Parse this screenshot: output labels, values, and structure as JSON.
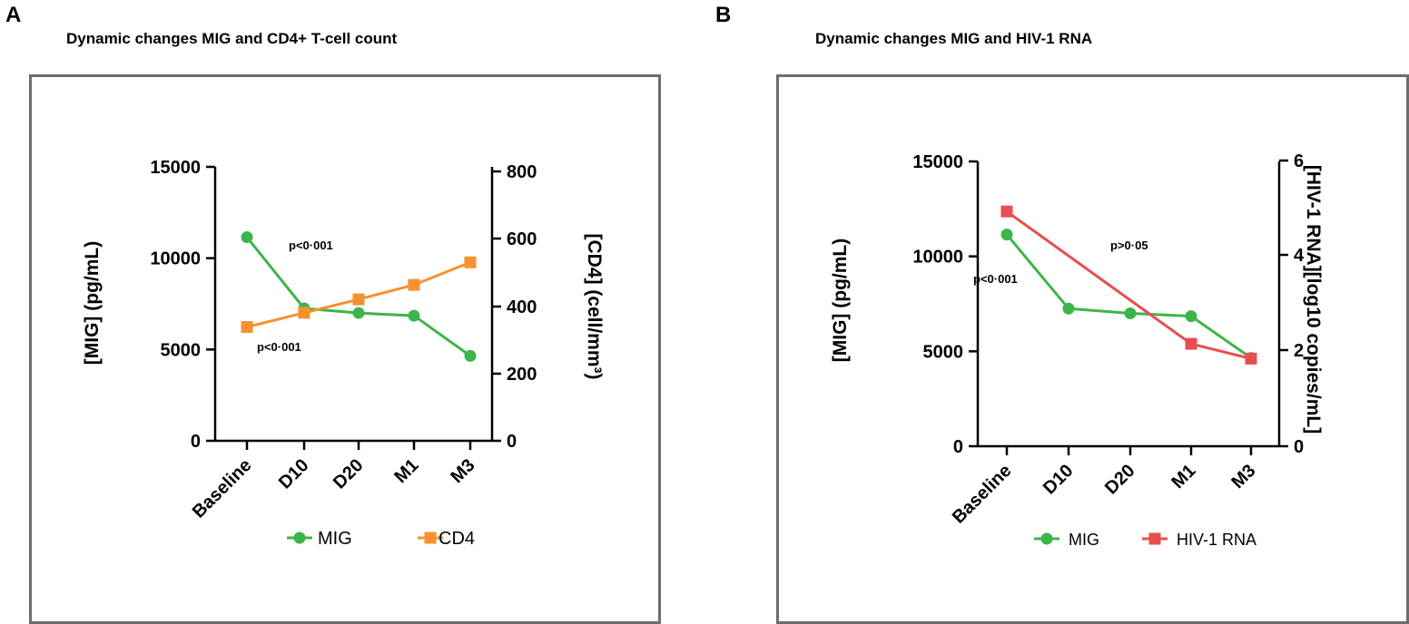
{
  "panels": [
    {
      "letter": "A",
      "title": "Dynamic changes MIG and CD4+ T-cell count"
    },
    {
      "letter": "B",
      "title": "Dynamic changes MIG and HIV-1 RNA"
    }
  ],
  "chart_data": [
    {
      "type": "line",
      "categories": [
        "Baseline",
        "D10",
        "D20",
        "M1",
        "M3"
      ],
      "ylabel": "[MIG] (pg/mL)",
      "y2label": "[CD4] (cell/mm³)",
      "ylim": [
        0,
        15000
      ],
      "yticks": [
        "0",
        "5000",
        "10000",
        "15000"
      ],
      "y2lim": [
        0,
        800
      ],
      "y2ticks": [
        "0",
        "200",
        "400",
        "600",
        "800"
      ],
      "series": [
        {
          "name": "MIG",
          "axis": "left",
          "marker": "circle",
          "color": "#3cb54a",
          "values": [
            11150,
            7250,
            7000,
            6850,
            4650
          ]
        },
        {
          "name": "CD4",
          "axis": "right",
          "marker": "square",
          "color": "#f5922f",
          "values": [
            338,
            380,
            420,
            463,
            530
          ]
        }
      ],
      "annotations": [
        "p<0·001",
        "p<0·001"
      ],
      "legend": [
        "MIG",
        "CD4"
      ]
    },
    {
      "type": "line",
      "categories": [
        "Baseline",
        "D10",
        "D20",
        "M1",
        "M3"
      ],
      "ylabel": "[MIG] (pg/mL)",
      "y2label": "[HIV-1 RNA][log10 copies/mL]",
      "ylim": [
        0,
        15000
      ],
      "yticks": [
        "0",
        "5000",
        "10000",
        "15000"
      ],
      "y2lim": [
        0,
        6
      ],
      "y2ticks": [
        "0",
        "2",
        "4",
        "6"
      ],
      "series": [
        {
          "name": "MIG",
          "axis": "left",
          "marker": "circle",
          "color": "#3cb54a",
          "values": [
            11150,
            7250,
            7000,
            6850,
            4650
          ]
        },
        {
          "name": "HIV-1 RNA",
          "axis": "right",
          "marker": "square",
          "color": "#e84e4f",
          "values": [
            4.93,
            null,
            null,
            2.15,
            1.84
          ]
        }
      ],
      "annotations": [
        "p>0·05",
        "p<0·001"
      ],
      "legend": [
        "MIG",
        "HIV-1 RNA"
      ]
    }
  ]
}
